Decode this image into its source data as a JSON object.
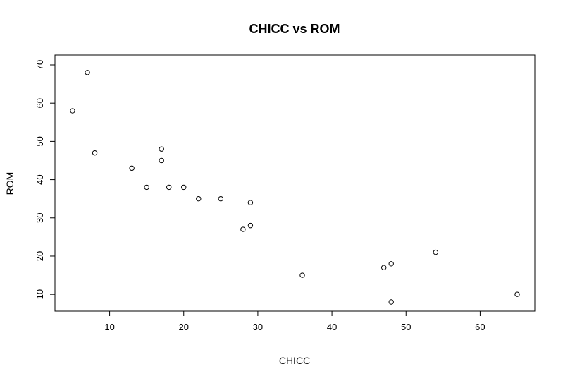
{
  "chart_data": {
    "type": "scatter",
    "title": "CHICC vs ROM",
    "xlabel": "CHICC",
    "ylabel": "ROM",
    "xlim": [
      5,
      65
    ],
    "ylim": [
      8,
      70
    ],
    "xticks": [
      10,
      20,
      30,
      40,
      50,
      60
    ],
    "yticks": [
      10,
      20,
      30,
      40,
      50,
      60,
      70
    ],
    "grid": false,
    "x": [
      5,
      7,
      8,
      13,
      15,
      17,
      17,
      18,
      20,
      22,
      25,
      28,
      29,
      29,
      36,
      47,
      48,
      48,
      54,
      65
    ],
    "y": [
      58,
      68,
      47,
      43,
      38,
      48,
      45,
      38,
      38,
      35,
      35,
      27,
      34,
      28,
      15,
      17,
      18,
      8,
      21,
      10
    ]
  }
}
